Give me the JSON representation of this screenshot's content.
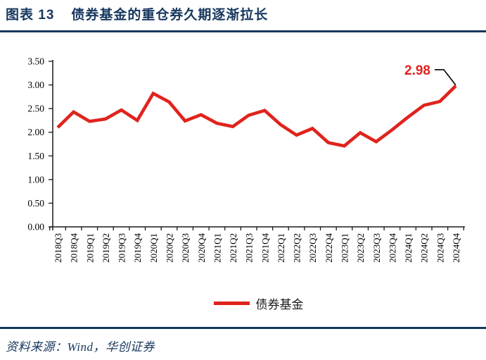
{
  "header": {
    "figure_label": "图表 13",
    "title": "债券基金的重仓券久期逐渐拉长"
  },
  "footer": {
    "source": "资料来源：Wind，华创证券"
  },
  "colors": {
    "navy": "#17375e",
    "red": "#e0231c",
    "axis": "#1a1a1a"
  },
  "chart_data": {
    "type": "line",
    "title": "",
    "xlabel": "",
    "ylabel": "",
    "ylim": [
      0,
      3.5
    ],
    "ytick_step": 0.5,
    "ytick_labels": [
      "0.00",
      "0.50",
      "1.00",
      "1.50",
      "2.00",
      "2.50",
      "3.00",
      "3.50"
    ],
    "grid": false,
    "legend_position": "bottom",
    "categories": [
      "2018Q3",
      "2018Q4",
      "2019Q1",
      "2019Q2",
      "2019Q3",
      "2019Q4",
      "2020Q1",
      "2020Q2",
      "2020Q3",
      "2020Q4",
      "2021Q1",
      "2021Q2",
      "2021Q3",
      "2021Q4",
      "2022Q1",
      "2022Q2",
      "2022Q3",
      "2022Q4",
      "2023Q1",
      "2023Q2",
      "2023Q3",
      "2023Q4",
      "2024Q1",
      "2024Q2",
      "2024Q3",
      "2024Q4"
    ],
    "series": [
      {
        "name": "债券基金",
        "color": "#e0231c",
        "values": [
          2.1,
          2.43,
          2.23,
          2.28,
          2.47,
          2.25,
          2.82,
          2.64,
          2.24,
          2.37,
          2.19,
          2.12,
          2.36,
          2.46,
          2.16,
          1.94,
          2.08,
          1.78,
          1.71,
          1.99,
          1.8,
          2.05,
          2.32,
          2.57,
          2.65,
          2.98
        ]
      }
    ],
    "annotation": {
      "text": "2.98",
      "series": "债券基金",
      "category": "2024Q4",
      "value": 2.98
    }
  }
}
